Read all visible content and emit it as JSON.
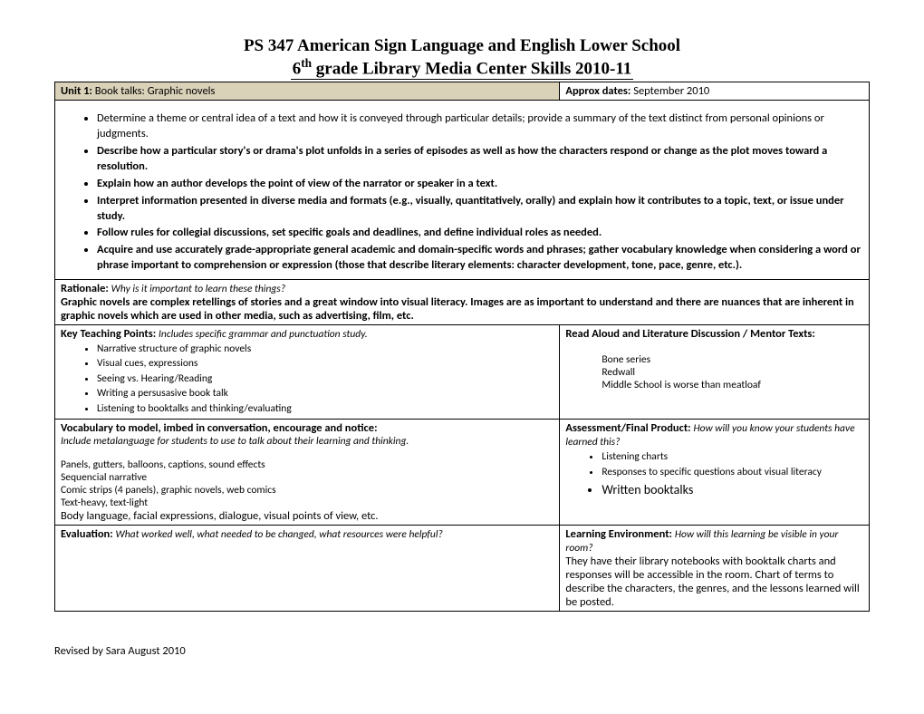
{
  "title1": "PS 347 American Sign Language and English Lower School",
  "title2_pre": "6",
  "title2_sup": "th",
  "title2_post": " grade Library Media Center Skills 2010-11",
  "unit_label": "Unit 1: ",
  "unit_text": "Book talks: Graphic novels",
  "dates_label": "Approx dates: ",
  "dates_text": "September 2010",
  "standards": [
    {
      "bold": false,
      "text": "Determine a theme or central idea of a text and how it is conveyed through particular details; provide a summary of the text distinct from personal opinions or judgments."
    },
    {
      "bold": true,
      "text": "Describe how a particular story's or drama's plot unfolds in a series of episodes as well as how the characters respond or change as the plot moves toward a resolution."
    },
    {
      "bold": true,
      "text": "Explain how an author develops the point of view of the narrator or speaker in a text."
    },
    {
      "bold": true,
      "text": "Interpret information presented in diverse media and formats (e.g., visually, quantitatively, orally) and explain how it contributes to a topic, text, or issue under study."
    },
    {
      "bold": true,
      "text": "Follow rules for collegial discussions, set specific goals and deadlines, and define individual roles as needed."
    },
    {
      "bold": true,
      "text": "Acquire and use accurately grade-appropriate general academic and domain-specific words and phrases; gather vocabulary knowledge when considering a word or phrase important to comprehension or expression (those that describe literary elements: character development, tone, pace, genre, etc.)."
    }
  ],
  "rationale_label": "Rationale: ",
  "rationale_q": "Why is it important to learn these things?",
  "rationale_body": "Graphic novels are complex retellings of stories and a great window into visual literacy. Images are as important to understand and there are nuances that are inherent in graphic novels which are used in other media, such as advertising, film, etc.",
  "ktp_label": "Key Teaching Points: ",
  "ktp_sub": "Includes specific grammar and punctuation study.",
  "ktp_items": [
    "Narrative structure of graphic novels",
    "Visual cues, expressions",
    "Seeing vs. Hearing/Reading",
    "Writing a persusasive book talk",
    "Listening to booktalks and thinking/evaluating"
  ],
  "readaloud_label": "Read Aloud and Literature Discussion / Mentor Texts:",
  "readaloud_items": [
    "Bone series",
    "Redwall",
    "Middle School is worse than meatloaf"
  ],
  "vocab_label": "Vocabulary to model, imbed in conversation, encourage and notice:",
  "vocab_sub": "Include metalanguage for students to use to talk about their learning and thinking.",
  "vocab_lines": [
    "Panels, gutters, balloons, captions, sound effects",
    "Sequencial narrative",
    "Comic strips (4 panels), graphic novels, web comics",
    "Text-heavy, text-light"
  ],
  "vocab_last": "Body language, facial expressions, dialogue, visual points of view, etc.",
  "assess_label": "Assessment/Final Product: ",
  "assess_sub": "How will you know your students have learned this?",
  "assess_items_small": [
    "Listening charts",
    "Responses to specific questions about visual literacy"
  ],
  "assess_item_big": "Written booktalks",
  "eval_label": "Evaluation: ",
  "eval_sub": "What worked well, what needed to be changed, what resources were helpful?",
  "env_label": "Learning Environment: ",
  "env_sub": "How will this learning be visible in your room?",
  "env_body": "They have their library notebooks with booktalk charts and responses will be accessible in the room. Chart of terms to describe the characters, the genres, and the lessons learned will be posted.",
  "footer": "Revised by Sara August 2010"
}
